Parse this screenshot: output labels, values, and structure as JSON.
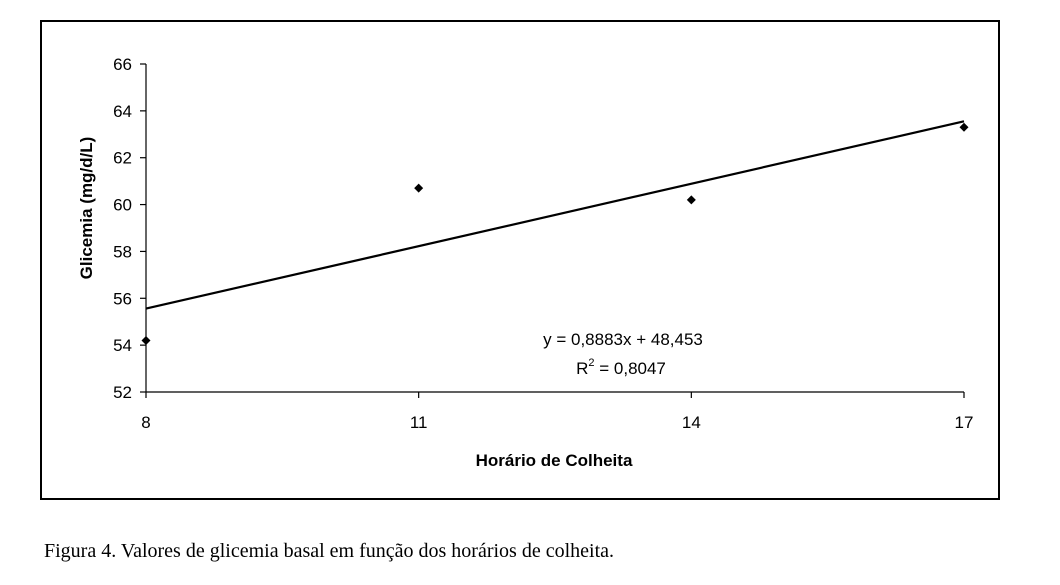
{
  "caption": "Figura 4. Valores de glicemia basal em função dos horários de colheita.",
  "chart_data": {
    "type": "scatter",
    "xlabel": "Horário de Colheita",
    "ylabel": "Glicemia (mg/d/L)",
    "x_ticks": [
      8,
      11,
      14,
      17
    ],
    "y_ticks": [
      52,
      54,
      56,
      58,
      60,
      62,
      64,
      66
    ],
    "xlim": [
      8,
      17
    ],
    "ylim": [
      52,
      66
    ],
    "grid": false,
    "marker": "diamond",
    "series": [
      {
        "points": [
          {
            "x": 8,
            "y": 54.2
          },
          {
            "x": 11,
            "y": 60.7
          },
          {
            "x": 14,
            "y": 60.2
          },
          {
            "x": 17,
            "y": 63.3
          }
        ]
      }
    ],
    "trendline": {
      "slope": 0.8883,
      "intercept": 48.453,
      "x_range": [
        8,
        17
      ],
      "equation": "y = 0,8883x + 48,453",
      "r2_prefix": "R",
      "r2_sup": "2",
      "r2_value": " = 0,8047"
    }
  }
}
